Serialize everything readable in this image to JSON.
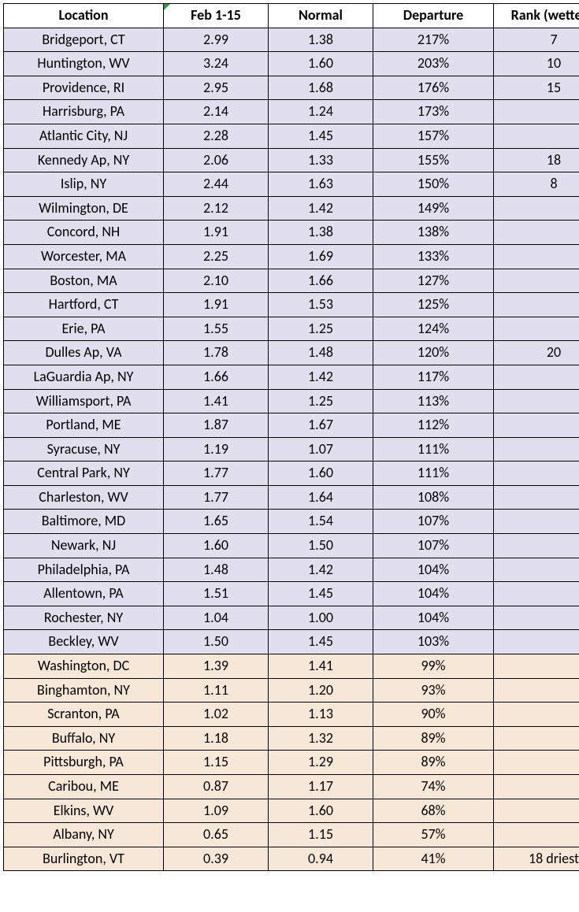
{
  "table": {
    "columns": [
      {
        "key": "location",
        "label": "Location",
        "class": "loc-col"
      },
      {
        "key": "feb",
        "label": "Feb 1-15",
        "class": "val-col"
      },
      {
        "key": "normal",
        "label": "Normal",
        "class": "val-col"
      },
      {
        "key": "departure",
        "label": "Departure",
        "class": "dep-col"
      },
      {
        "key": "rank",
        "label": "Rank (wettest)",
        "class": "rank-col"
      }
    ],
    "header_fontsize": 18,
    "body_fontsize": 18,
    "border_color": "#000000",
    "row_colors": {
      "purple": "#e1dfed",
      "tan": "#f6e7d6"
    },
    "triangle_color": "#2e9c44",
    "rows": [
      {
        "location": "Bridgeport, CT",
        "feb": "2.99",
        "normal": "1.38",
        "departure": "217%",
        "rank": "7",
        "band": "purple"
      },
      {
        "location": "Huntington, WV",
        "feb": "3.24",
        "normal": "1.60",
        "departure": "203%",
        "rank": "10",
        "band": "purple"
      },
      {
        "location": "Providence, RI",
        "feb": "2.95",
        "normal": "1.68",
        "departure": "176%",
        "rank": "15",
        "band": "purple"
      },
      {
        "location": "Harrisburg, PA",
        "feb": "2.14",
        "normal": "1.24",
        "departure": "173%",
        "rank": "",
        "band": "purple"
      },
      {
        "location": "Atlantic City, NJ",
        "feb": "2.28",
        "normal": "1.45",
        "departure": "157%",
        "rank": "",
        "band": "purple"
      },
      {
        "location": "Kennedy Ap, NY",
        "feb": "2.06",
        "normal": "1.33",
        "departure": "155%",
        "rank": "18",
        "band": "purple"
      },
      {
        "location": "Islip, NY",
        "feb": "2.44",
        "normal": "1.63",
        "departure": "150%",
        "rank": "8",
        "band": "purple"
      },
      {
        "location": "Wilmington, DE",
        "feb": "2.12",
        "normal": "1.42",
        "departure": "149%",
        "rank": "",
        "band": "purple"
      },
      {
        "location": "Concord, NH",
        "feb": "1.91",
        "normal": "1.38",
        "departure": "138%",
        "rank": "",
        "band": "purple"
      },
      {
        "location": "Worcester, MA",
        "feb": "2.25",
        "normal": "1.69",
        "departure": "133%",
        "rank": "",
        "band": "purple"
      },
      {
        "location": "Boston, MA",
        "feb": "2.10",
        "normal": "1.66",
        "departure": "127%",
        "rank": "",
        "band": "purple"
      },
      {
        "location": "Hartford, CT",
        "feb": "1.91",
        "normal": "1.53",
        "departure": "125%",
        "rank": "",
        "band": "purple"
      },
      {
        "location": "Erie, PA",
        "feb": "1.55",
        "normal": "1.25",
        "departure": "124%",
        "rank": "",
        "band": "purple"
      },
      {
        "location": "Dulles Ap, VA",
        "feb": "1.78",
        "normal": "1.48",
        "departure": "120%",
        "rank": "20",
        "band": "purple"
      },
      {
        "location": "LaGuardia Ap, NY",
        "feb": "1.66",
        "normal": "1.42",
        "departure": "117%",
        "rank": "",
        "band": "purple"
      },
      {
        "location": "Williamsport, PA",
        "feb": "1.41",
        "normal": "1.25",
        "departure": "113%",
        "rank": "",
        "band": "purple"
      },
      {
        "location": "Portland, ME",
        "feb": "1.87",
        "normal": "1.67",
        "departure": "112%",
        "rank": "",
        "band": "purple"
      },
      {
        "location": "Syracuse, NY",
        "feb": "1.19",
        "normal": "1.07",
        "departure": "111%",
        "rank": "",
        "band": "purple"
      },
      {
        "location": "Central Park, NY",
        "feb": "1.77",
        "normal": "1.60",
        "departure": "111%",
        "rank": "",
        "band": "purple"
      },
      {
        "location": "Charleston, WV",
        "feb": "1.77",
        "normal": "1.64",
        "departure": "108%",
        "rank": "",
        "band": "purple"
      },
      {
        "location": "Baltimore, MD",
        "feb": "1.65",
        "normal": "1.54",
        "departure": "107%",
        "rank": "",
        "band": "purple"
      },
      {
        "location": "Newark, NJ",
        "feb": "1.60",
        "normal": "1.50",
        "departure": "107%",
        "rank": "",
        "band": "purple"
      },
      {
        "location": "Philadelphia, PA",
        "feb": "1.48",
        "normal": "1.42",
        "departure": "104%",
        "rank": "",
        "band": "purple"
      },
      {
        "location": "Allentown, PA",
        "feb": "1.51",
        "normal": "1.45",
        "departure": "104%",
        "rank": "",
        "band": "purple"
      },
      {
        "location": "Rochester, NY",
        "feb": "1.04",
        "normal": "1.00",
        "departure": "104%",
        "rank": "",
        "band": "purple"
      },
      {
        "location": "Beckley, WV",
        "feb": "1.50",
        "normal": "1.45",
        "departure": "103%",
        "rank": "",
        "band": "purple"
      },
      {
        "location": "Washington, DC",
        "feb": "1.39",
        "normal": "1.41",
        "departure": "99%",
        "rank": "",
        "band": "tan"
      },
      {
        "location": "Binghamton, NY",
        "feb": "1.11",
        "normal": "1.20",
        "departure": "93%",
        "rank": "",
        "band": "tan"
      },
      {
        "location": "Scranton, PA",
        "feb": "1.02",
        "normal": "1.13",
        "departure": "90%",
        "rank": "",
        "band": "tan"
      },
      {
        "location": "Buffalo, NY",
        "feb": "1.18",
        "normal": "1.32",
        "departure": "89%",
        "rank": "",
        "band": "tan"
      },
      {
        "location": "Pittsburgh, PA",
        "feb": "1.15",
        "normal": "1.29",
        "departure": "89%",
        "rank": "",
        "band": "tan"
      },
      {
        "location": "Caribou, ME",
        "feb": "0.87",
        "normal": "1.17",
        "departure": "74%",
        "rank": "",
        "band": "tan"
      },
      {
        "location": "Elkins, WV",
        "feb": "1.09",
        "normal": "1.60",
        "departure": "68%",
        "rank": "",
        "band": "tan"
      },
      {
        "location": "Albany, NY",
        "feb": "0.65",
        "normal": "1.15",
        "departure": "57%",
        "rank": "",
        "band": "tan"
      },
      {
        "location": "Burlington, VT",
        "feb": "0.39",
        "normal": "0.94",
        "departure": "41%",
        "rank": "18 driest",
        "band": "tan"
      }
    ]
  }
}
